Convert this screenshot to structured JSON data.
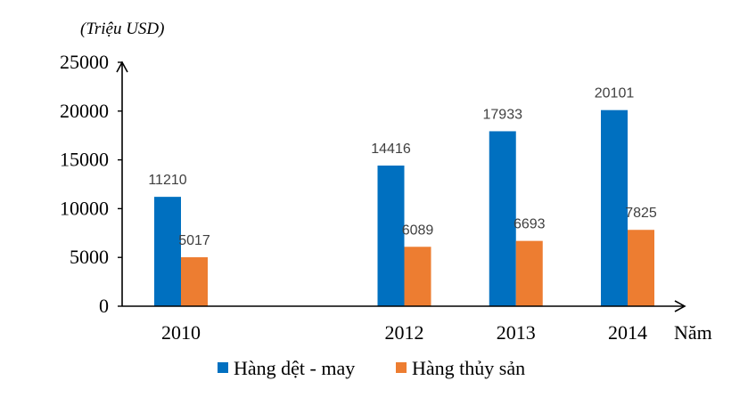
{
  "chart_data": {
    "type": "bar",
    "ylabel": "(Triệu USD)",
    "xlabel": "Năm",
    "categories": [
      "2010",
      "2012",
      "2013",
      "2014"
    ],
    "x_positions": [
      2010,
      2012,
      2013,
      2014
    ],
    "yticks": [
      "25000",
      "20000",
      "15000",
      "10000",
      "5000",
      "0"
    ],
    "ytick_values": [
      25000,
      20000,
      15000,
      10000,
      5000,
      0
    ],
    "ylim": [
      0,
      25000
    ],
    "xlim": [
      2009.5,
      2014.5
    ],
    "grid": false,
    "legend_position": "bottom",
    "series": [
      {
        "name": "Hàng dệt - may",
        "color": "#0070c0",
        "values": [
          11210,
          14416,
          17933,
          20101
        ],
        "labels": [
          "11210",
          "14416",
          "17933",
          "20101"
        ]
      },
      {
        "name": "Hàng thủy sản",
        "color": "#ed7d31",
        "values": [
          5017,
          6089,
          6693,
          7825
        ],
        "labels": [
          "5017",
          "6089",
          "6693",
          "7825"
        ]
      }
    ]
  }
}
